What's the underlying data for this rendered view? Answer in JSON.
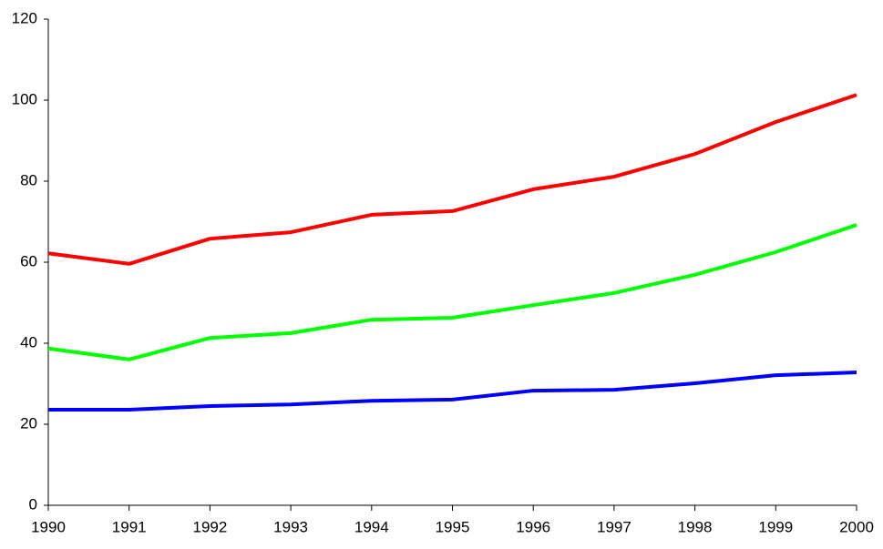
{
  "chart_data": {
    "type": "line",
    "x": [
      1990,
      1991,
      1992,
      1993,
      1994,
      1995,
      1996,
      1997,
      1998,
      1999,
      2000
    ],
    "xlim": [
      1990,
      2000
    ],
    "xticks": [
      1990,
      1991,
      1992,
      1993,
      1994,
      1995,
      1996,
      1997,
      1998,
      1999,
      2000
    ],
    "ylim": [
      0,
      120
    ],
    "yticks": [
      0,
      20,
      40,
      60,
      80,
      100,
      120
    ],
    "grid": false,
    "series": [
      {
        "color": "#ff0000",
        "values": [
          62.2,
          59.6,
          65.8,
          67.4,
          71.7,
          72.6,
          78,
          81.1,
          86.7,
          94.6,
          101.3
        ]
      },
      {
        "color": "#00ff00",
        "values": [
          38.7,
          36,
          41.3,
          42.5,
          45.8,
          46.3,
          49.4,
          52.4,
          56.9,
          62.5,
          69.2
        ]
      },
      {
        "color": "#0000ff",
        "values": [
          23.6,
          23.6,
          24.5,
          24.9,
          25.8,
          26.1,
          28.3,
          28.5,
          30.1,
          32.1,
          32.8
        ]
      }
    ]
  }
}
